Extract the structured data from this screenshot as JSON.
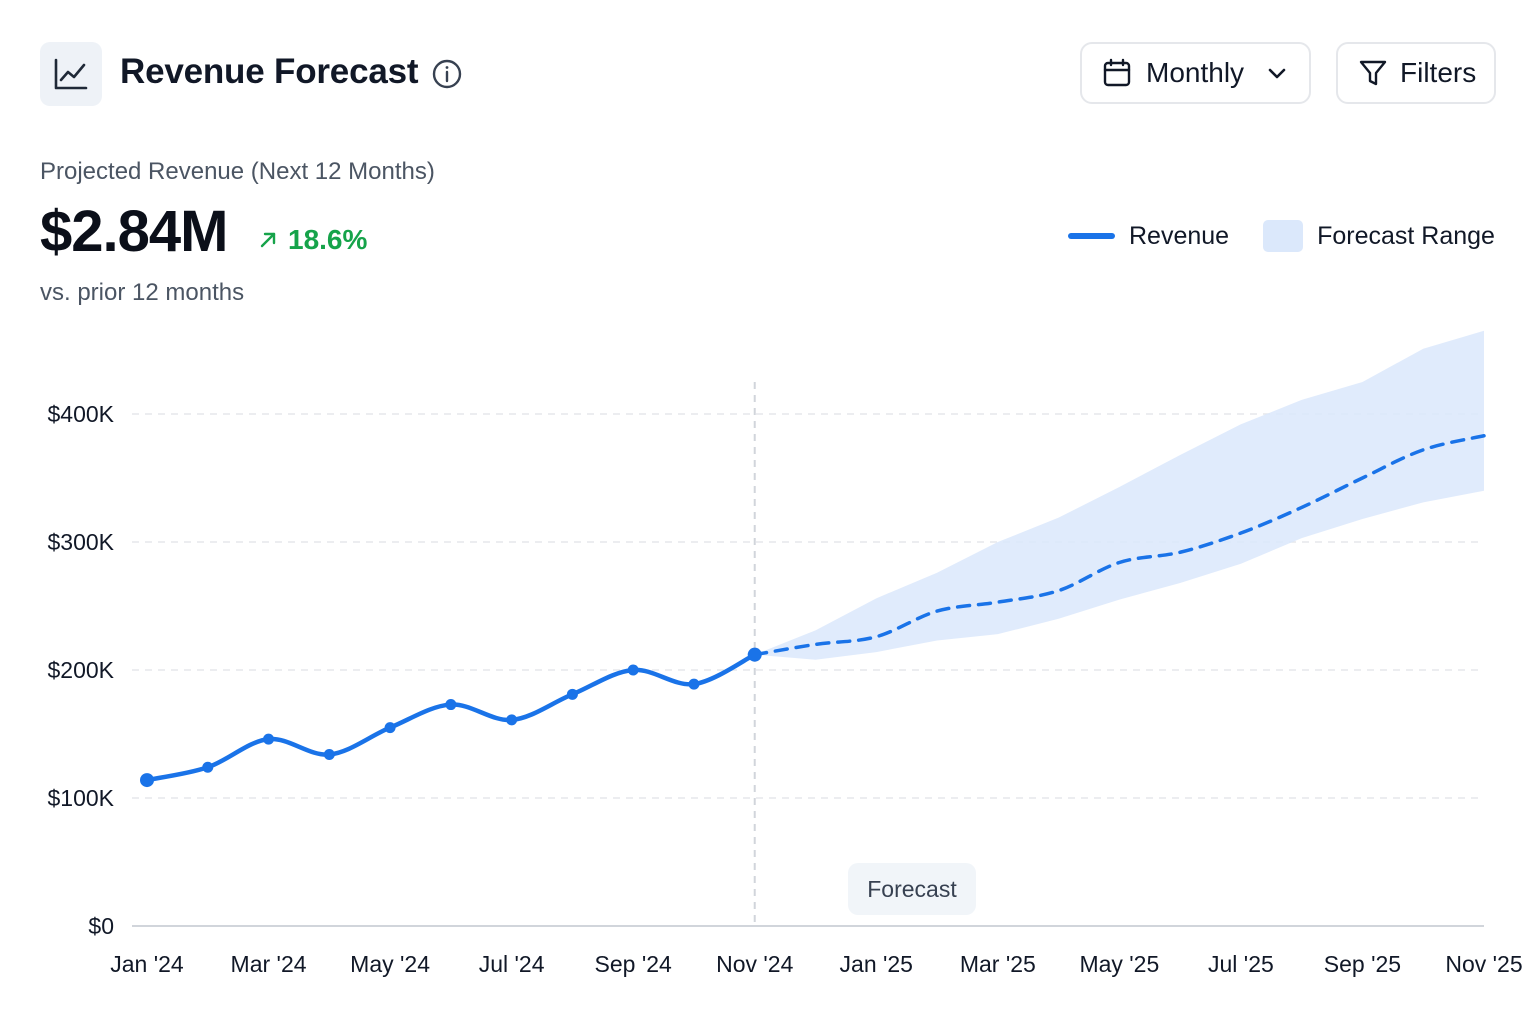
{
  "header": {
    "title": "Revenue Forecast",
    "logo_icon": "line-chart-icon",
    "info_icon": "info-icon"
  },
  "controls": {
    "period_label": "Monthly",
    "period_icon": "calendar-icon",
    "period_chevron_icon": "chevron-down-icon",
    "filters_label": "Filters",
    "filters_icon": "filter-icon"
  },
  "kpi": {
    "label": "Projected Revenue (Next 12 Months)",
    "value": "$2.84M",
    "change": "18.6%",
    "change_icon": "arrow-up-right-icon",
    "change_color": "#16a34a",
    "comparison": "vs. prior 12 months"
  },
  "legend": {
    "items": [
      {
        "label": "Revenue",
        "kind": "line",
        "color": "#1a73e8"
      },
      {
        "label": "Forecast Range",
        "kind": "band",
        "color": "#dbe8fb"
      }
    ],
    "placement": "top-right"
  },
  "chart_data": {
    "type": "line",
    "x": [
      "Jan '24",
      "Feb '24",
      "Mar '24",
      "Apr '24",
      "May '24",
      "Jun '24",
      "Jul '24",
      "Aug '24",
      "Sep '24",
      "Oct '24",
      "Nov '24",
      "Dec '24",
      "Jan '25",
      "Feb '25",
      "Mar '25",
      "Apr '25",
      "May '25",
      "Jun '25",
      "Jul '25",
      "Aug '25",
      "Sep '25",
      "Oct '25",
      "Nov '25"
    ],
    "x_tick_labels": [
      "Jan '24",
      "Mar '24",
      "May '24",
      "Jul '24",
      "Sep '24",
      "Nov '24",
      "Jan '25",
      "Mar '25",
      "May '25",
      "Jul '25",
      "Sep '25",
      "Nov '25"
    ],
    "series": [
      {
        "name": "Revenue",
        "kind": "actual",
        "color": "#1a73e8",
        "values": [
          114000,
          124000,
          146000,
          134000,
          155000,
          173000,
          161000,
          181000,
          200000,
          189000,
          212000,
          null,
          null,
          null,
          null,
          null,
          null,
          null,
          null,
          null,
          null,
          null,
          null
        ]
      },
      {
        "name": "Revenue",
        "kind": "forecast",
        "color": "#1a73e8",
        "dashed": true,
        "values": [
          null,
          null,
          null,
          null,
          null,
          null,
          null,
          null,
          null,
          null,
          212000,
          220000,
          226000,
          246000,
          253000,
          262000,
          284000,
          292000,
          307000,
          327000,
          350000,
          372000,
          383000
        ]
      }
    ],
    "forecast_range": {
      "name": "Forecast Range",
      "color": "#dbe8fb",
      "lower": [
        null,
        null,
        null,
        null,
        null,
        null,
        null,
        null,
        null,
        null,
        212000,
        208000,
        214000,
        223000,
        228000,
        240000,
        255000,
        268000,
        283000,
        303000,
        318000,
        331000,
        340000
      ],
      "upper": [
        null,
        null,
        null,
        null,
        null,
        null,
        null,
        null,
        null,
        null,
        212000,
        231000,
        256000,
        276000,
        300000,
        319000,
        343000,
        368000,
        392000,
        411000,
        425000,
        451000,
        465000
      ]
    },
    "forecast_start_label": "Forecast",
    "y_ticks": [
      0,
      100000,
      200000,
      300000,
      400000
    ],
    "y_tick_labels": [
      "$0",
      "$100K",
      "$200K",
      "$300K",
      "$400K"
    ],
    "ylim": [
      0,
      413000
    ],
    "grid": true
  }
}
